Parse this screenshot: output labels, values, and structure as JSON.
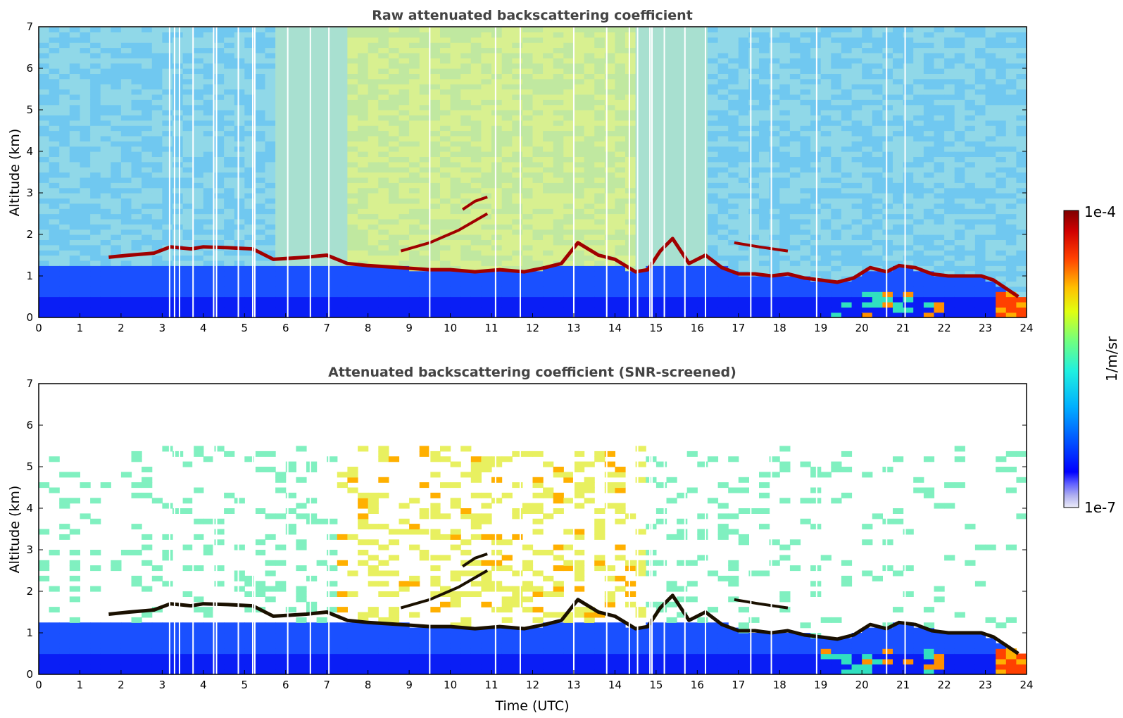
{
  "chart_data": [
    {
      "type": "heatmap",
      "title": "Raw attenuated backscattering coefficient",
      "xlabel": "",
      "ylabel": "Altitude (km)",
      "xlim": [
        0,
        24
      ],
      "ylim": [
        0,
        7
      ],
      "x_ticks": [
        "0",
        "1",
        "2",
        "3",
        "4",
        "5",
        "6",
        "7",
        "8",
        "9",
        "10",
        "11",
        "12",
        "13",
        "14",
        "15",
        "16",
        "17",
        "18",
        "19",
        "20",
        "21",
        "22",
        "23",
        "24"
      ],
      "y_ticks": [
        "0",
        "1",
        "2",
        "3",
        "4",
        "5",
        "6",
        "7"
      ],
      "colormap": "jet",
      "scale": "log",
      "data_gaps_hours": [
        3.18,
        3.3,
        3.42,
        3.75,
        4.25,
        4.32,
        4.85,
        5.2,
        5.25,
        6.05,
        6.6,
        7.05,
        9.5,
        11.1,
        11.7,
        13.0,
        13.8,
        14.35,
        14.55,
        14.85,
        14.9,
        15.2,
        15.7,
        16.2,
        17.3,
        17.8,
        18.9,
        20.6,
        21.05
      ],
      "cloud_layer": {
        "time_hours": [
          1.7,
          2.2,
          2.8,
          3.2,
          3.7,
          4.0,
          4.6,
          5.2,
          5.7,
          6.5,
          7.0,
          7.5,
          8.0,
          8.8,
          9.5,
          10.0,
          10.6,
          11.2,
          11.8,
          12.3,
          12.7,
          13.1,
          13.6,
          14.0,
          14.5,
          14.8,
          15.1,
          15.4,
          15.8,
          16.2,
          16.6,
          17.0,
          17.4,
          17.8,
          18.2,
          18.6,
          19.0,
          19.4,
          19.8,
          20.2,
          20.6,
          20.9,
          21.3,
          21.7,
          22.1,
          22.5,
          22.9,
          23.2,
          23.5,
          23.8
        ],
        "altitude_km": [
          1.45,
          1.5,
          1.55,
          1.7,
          1.65,
          1.7,
          1.68,
          1.65,
          1.4,
          1.45,
          1.5,
          1.3,
          1.25,
          1.2,
          1.15,
          1.15,
          1.1,
          1.15,
          1.1,
          1.2,
          1.3,
          1.8,
          1.5,
          1.4,
          1.1,
          1.15,
          1.6,
          1.9,
          1.3,
          1.5,
          1.2,
          1.05,
          1.05,
          1.0,
          1.05,
          0.95,
          0.9,
          0.85,
          0.95,
          1.2,
          1.1,
          1.25,
          1.2,
          1.05,
          1.0,
          1.0,
          1.0,
          0.9,
          0.7,
          0.5
        ]
      },
      "upper_layers": [
        {
          "time_hours": [
            8.8,
            9.5,
            10.2,
            10.9
          ],
          "altitude_km": [
            1.6,
            1.8,
            2.1,
            2.5
          ]
        },
        {
          "time_hours": [
            10.3,
            10.6,
            10.9
          ],
          "altitude_km": [
            2.6,
            2.8,
            2.9
          ]
        },
        {
          "time_hours": [
            16.9,
            17.5,
            18.2
          ],
          "altitude_km": [
            1.8,
            1.7,
            1.6
          ]
        }
      ]
    },
    {
      "type": "heatmap",
      "title": "Attenuated backscattering coefficient (SNR-screened)",
      "xlabel": "Time (UTC)",
      "ylabel": "Altitude (km)",
      "xlim": [
        0,
        24
      ],
      "ylim": [
        0,
        7
      ],
      "x_ticks": [
        "0",
        "1",
        "2",
        "3",
        "4",
        "5",
        "6",
        "7",
        "8",
        "9",
        "10",
        "11",
        "12",
        "13",
        "14",
        "15",
        "16",
        "17",
        "18",
        "19",
        "20",
        "21",
        "22",
        "23",
        "24"
      ],
      "y_ticks": [
        "0",
        "1",
        "2",
        "3",
        "4",
        "5",
        "6",
        "7"
      ],
      "colormap": "jet",
      "scale": "log",
      "screened": true
    }
  ],
  "colorbar": {
    "max_label": "1e-4",
    "min_label": "1e-7",
    "unit_label": "1/m/sr",
    "colors": [
      "#e8e8f8",
      "#b0b0f0",
      "#7070ff",
      "#0000ff",
      "#0060ff",
      "#00b8ff",
      "#30ffd0",
      "#a0ff60",
      "#ffff00",
      "#ffa000",
      "#ff3000",
      "#c00000",
      "#7f0000"
    ]
  }
}
